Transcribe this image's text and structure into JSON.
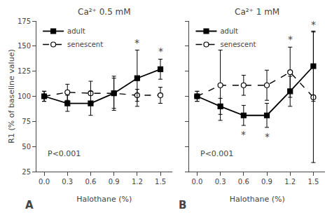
{
  "chart_data": [
    {
      "type": "line",
      "title": "Ca²⁺ 0.5 mM",
      "xlabel": "Halothane (%)",
      "ylabel": "R1 (% of baseline value)",
      "x": [
        0,
        0.3,
        0.6,
        0.9,
        1.2,
        1.5
      ],
      "series": [
        {
          "name": "adult",
          "color": "#000000",
          "marker": "square",
          "line_style": "solid",
          "values": [
            100,
            93,
            93,
            103,
            118,
            127
          ],
          "errors": [
            5,
            8,
            12,
            17,
            28,
            10
          ]
        },
        {
          "name": "senescent",
          "color": "#000000",
          "marker": "circle-open",
          "line_style": "dashed",
          "values": [
            100,
            104,
            103,
            103,
            101,
            101
          ],
          "errors": [
            5,
            8,
            12,
            15,
            6,
            8
          ]
        }
      ],
      "stars": [
        {
          "text": "*",
          "series": "adult",
          "x": 1.2,
          "position": "above"
        },
        {
          "text": "*",
          "series": "adult",
          "x": 1.5,
          "position": "above"
        }
      ],
      "note": "P<0.001",
      "panel_label": "A",
      "xlim": [
        -0.1,
        1.65
      ],
      "xticks": [
        {
          "value": 0,
          "label": "0.0"
        },
        0.3,
        0.6,
        0.9,
        1.2,
        1.5
      ],
      "ylim": [
        25,
        175
      ],
      "yticks": [
        25,
        50,
        75,
        100,
        125,
        150,
        175
      ],
      "grid": false,
      "legend": "upper left"
    },
    {
      "type": "line",
      "title": "Ca²⁺ 1 mM",
      "xlabel": "Halothane (%)",
      "x": [
        0,
        0.3,
        0.6,
        0.9,
        1.2,
        1.5
      ],
      "series": [
        {
          "name": "adult",
          "color": "#000000",
          "marker": "square",
          "line_style": "solid",
          "values": [
            100,
            90,
            81,
            81,
            105,
            130
          ],
          "errors": [
            5,
            8,
            10,
            12,
            15,
            35
          ]
        },
        {
          "name": "senescent",
          "color": "#000000",
          "marker": "circle-open",
          "line_style": "dashed",
          "values": [
            100,
            111,
            111,
            111,
            124,
            99
          ],
          "errors": [
            5,
            35,
            10,
            15,
            25,
            65
          ]
        }
      ],
      "stars": [
        {
          "text": "*",
          "series": "adult",
          "x": 0.6,
          "position": "below"
        },
        {
          "text": "*",
          "series": "adult",
          "x": 0.9,
          "position": "below"
        },
        {
          "text": "*",
          "series": "senescent",
          "x": 1.2,
          "position": "above"
        },
        {
          "text": "*",
          "series": "senescent",
          "x": 1.5,
          "position": "above"
        }
      ],
      "note": "P<0.001",
      "panel_label": "B",
      "xlim": [
        -0.1,
        1.65
      ],
      "xticks": [
        {
          "value": 0,
          "label": "0.0"
        },
        0.3,
        0.6,
        0.9,
        1.2,
        1.5
      ],
      "ylim": [
        25,
        175
      ],
      "yticks": [
        25,
        50,
        75,
        100,
        125,
        150,
        175
      ],
      "grid": false,
      "legend": "upper left",
      "tick_labels": "x"
    }
  ]
}
